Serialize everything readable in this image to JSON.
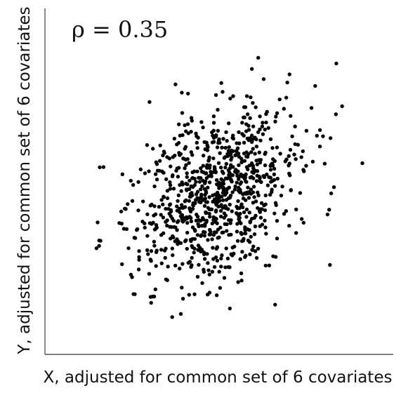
{
  "chart_data": {
    "type": "scatter",
    "annotation": "ρ = 0.35",
    "xlabel": "X, adjusted for common set of 6 covariates",
    "ylabel": "Y, adjusted for common set of 6 covariates",
    "xlim": [
      0,
      1
    ],
    "ylim": [
      0,
      1
    ],
    "grid": false,
    "tick_labels": false,
    "n_points": 900,
    "correlation": 0.35,
    "point_color": "#050505",
    "highlighted_points": [
      {
        "x": 0.09,
        "y": 0.28
      },
      {
        "x": 0.27,
        "y": 0.08
      },
      {
        "x": 0.42,
        "y": 0.11
      },
      {
        "x": 0.64,
        "y": 0.94
      },
      {
        "x": 0.93,
        "y": 0.77
      },
      {
        "x": 1.0,
        "y": 0.57
      },
      {
        "x": 0.16,
        "y": 0.36
      },
      {
        "x": 0.91,
        "y": 0.92
      }
    ]
  },
  "colors": {
    "background": "#ffffff",
    "axis": "#555555",
    "points": "#050505"
  }
}
